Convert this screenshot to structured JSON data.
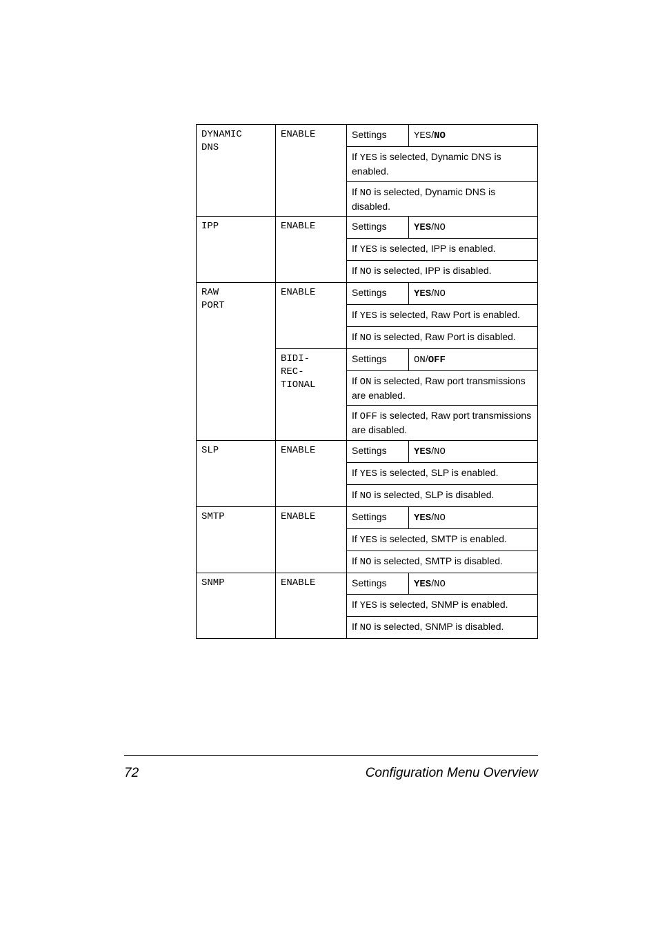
{
  "page": {
    "number": "72",
    "footer_title": "Configuration Menu Overview"
  },
  "labels": {
    "settings": "Settings"
  },
  "rows": {
    "dynamic_dns": {
      "name_line1": "DYNAMIC",
      "name_line2": "DNS",
      "param": "ENABLE",
      "value_pre": "YES",
      "value_sep": "/",
      "value_bold": "NO",
      "desc1_a": "If ",
      "desc1_b": "YES",
      "desc1_c": " is selected, Dynamic DNS is enabled.",
      "desc2_a": "If ",
      "desc2_b": "NO",
      "desc2_c": " is selected, Dynamic DNS is disabled."
    },
    "ipp": {
      "name": "IPP",
      "param": "ENABLE",
      "value_bold": "YES",
      "value_sep": "/",
      "value_post": "NO",
      "desc1_a": "If ",
      "desc1_b": "YES",
      "desc1_c": " is selected, IPP is enabled.",
      "desc2_a": "If ",
      "desc2_b": "NO",
      "desc2_c": " is selected, IPP is disabled."
    },
    "raw_port": {
      "name_line1": "RAW",
      "name_line2": "PORT",
      "param1": "ENABLE",
      "p1_value_bold": "YES",
      "p1_value_sep": "/",
      "p1_value_post": "NO",
      "p1_desc1_a": "If ",
      "p1_desc1_b": "YES",
      "p1_desc1_c": " is selected, Raw Port is enabled.",
      "p1_desc2_a": "If ",
      "p1_desc2_b": "NO",
      "p1_desc2_c": " is selected, Raw Port is disabled.",
      "param2_line1": "BIDI-",
      "param2_line2": "REC-",
      "param2_line3": "TIONAL",
      "p2_value_pre": "ON",
      "p2_value_sep": "/",
      "p2_value_bold": "OFF",
      "p2_desc1_a": "If ",
      "p2_desc1_b": "ON",
      "p2_desc1_c": " is selected, Raw port transmissions are enabled.",
      "p2_desc2_a": "If ",
      "p2_desc2_b": "OFF",
      "p2_desc2_c": " is selected, Raw port transmissions are disabled."
    },
    "slp": {
      "name": "SLP",
      "param": "ENABLE",
      "value_bold": "YES",
      "value_sep": "/",
      "value_post": "NO",
      "desc1_a": "If ",
      "desc1_b": "YES",
      "desc1_c": " is selected, SLP is enabled.",
      "desc2_a": "If ",
      "desc2_b": "NO",
      "desc2_c": " is selected, SLP is disabled."
    },
    "smtp": {
      "name": "SMTP",
      "param": "ENABLE",
      "value_bold": "YES",
      "value_sep": "/",
      "value_post": "NO",
      "desc1_a": "If ",
      "desc1_b": "YES",
      "desc1_c": " is selected, SMTP is enabled.",
      "desc2_a": "If ",
      "desc2_b": "NO",
      "desc2_c": " is selected, SMTP is disabled."
    },
    "snmp": {
      "name": "SNMP",
      "param": "ENABLE",
      "value_bold": "YES",
      "value_sep": "/",
      "value_post": "NO",
      "desc1_a": "If ",
      "desc1_b": "YES",
      "desc1_c": " is selected, SNMP is enabled.",
      "desc2_a": "If ",
      "desc2_b": "NO",
      "desc2_c": " is selected, SNMP is disabled."
    }
  }
}
